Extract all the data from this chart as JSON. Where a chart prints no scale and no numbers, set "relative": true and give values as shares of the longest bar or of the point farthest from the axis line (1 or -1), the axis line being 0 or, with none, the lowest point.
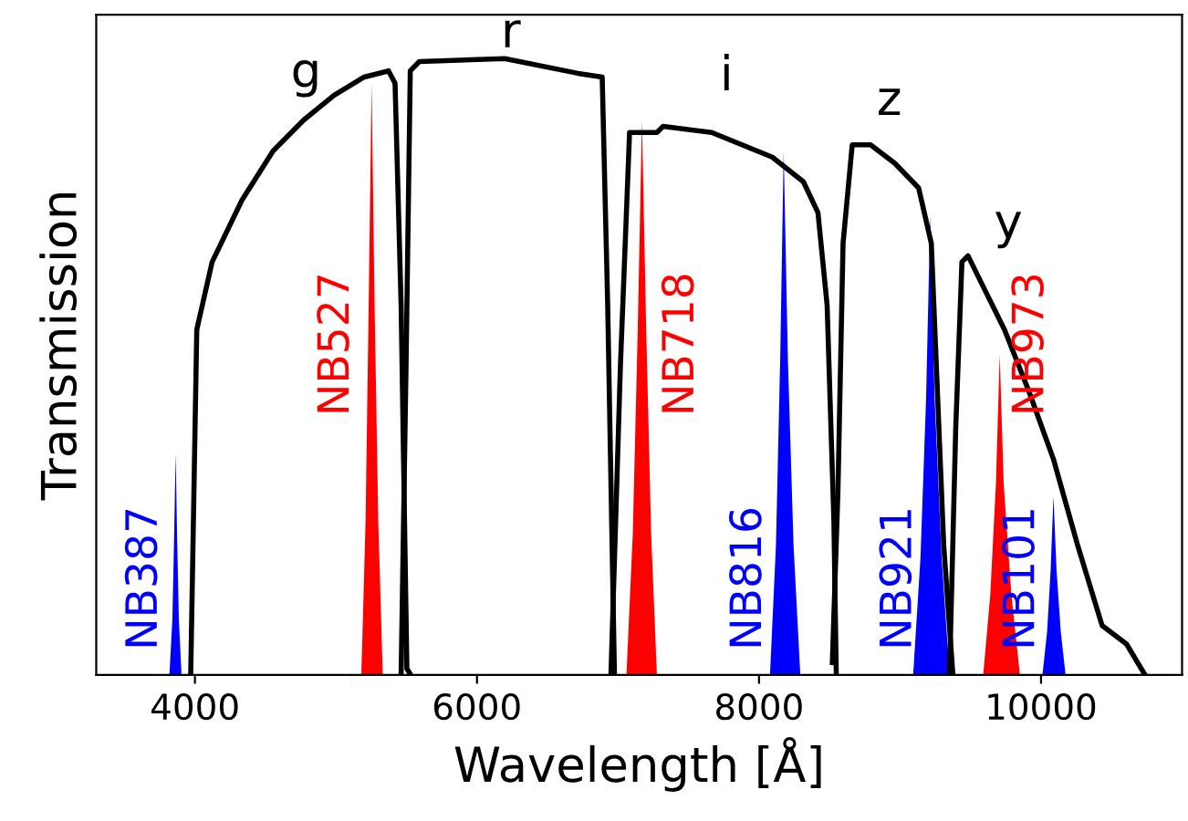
{
  "chart_data": {
    "type": "line",
    "relative": true,
    "xlabel": "Wavelength [Å]",
    "ylabel": "Transmission",
    "xlim": [
      3300,
      11000
    ],
    "xticks": [
      4000,
      6000,
      8000,
      10000
    ],
    "grid": false,
    "legend": false,
    "marker": "none",
    "line_style": "solid",
    "series": [
      {
        "name": "g",
        "color": "#000000",
        "x": [
          3970,
          4013,
          4122,
          4333,
          4554,
          4770,
          4985,
          5200,
          5373,
          5419,
          5462,
          5503,
          5530
        ],
        "values": [
          0,
          0.56,
          0.67,
          0.77,
          0.85,
          0.9,
          0.94,
          0.97,
          0.98,
          0.96,
          0.6,
          0.01,
          0
        ]
      },
      {
        "name": "r",
        "color": "#000000",
        "x": [
          5462,
          5497,
          5527,
          5591,
          6197,
          6716,
          6888,
          6927,
          6975
        ],
        "values": [
          0,
          0.5,
          0.98,
          0.995,
          1.0,
          0.976,
          0.97,
          0.6,
          0
        ]
      },
      {
        "name": "i",
        "color": "#000000",
        "x": [
          6950,
          7017,
          7082,
          7276,
          7320,
          7665,
          8094,
          8315,
          8418,
          8483,
          8531,
          8548
        ],
        "values": [
          0,
          0.5,
          0.88,
          0.88,
          0.89,
          0.88,
          0.84,
          0.8,
          0.75,
          0.6,
          0.25,
          0
        ]
      },
      {
        "name": "z",
        "color": "#000000",
        "x": [
          8520,
          8560,
          8596,
          8661,
          8791,
          8963,
          9132,
          9222,
          9310,
          9375
        ],
        "values": [
          0.02,
          0.3,
          0.7,
          0.86,
          0.86,
          0.83,
          0.79,
          0.7,
          0.21,
          0
        ]
      },
      {
        "name": "y",
        "color": "#000000",
        "x": [
          9351,
          9395,
          9439,
          9482,
          9568,
          9741,
          9914,
          10088,
          10260,
          10433,
          10606,
          10737
        ],
        "values": [
          0,
          0.4,
          0.67,
          0.68,
          0.64,
          0.56,
          0.46,
          0.35,
          0.21,
          0.08,
          0.05,
          0
        ]
      },
      {
        "name": "NB387",
        "type": "area",
        "color": "#0000ff",
        "x": [
          3819,
          3840,
          3852,
          3863,
          3874,
          3886,
          3905
        ],
        "values": [
          0,
          0.09,
          0.22,
          0.36,
          0.22,
          0.09,
          0
        ]
      },
      {
        "name": "NB527",
        "type": "area",
        "color": "#ff0000",
        "x": [
          5180,
          5210,
          5232,
          5253,
          5274,
          5300,
          5332
        ],
        "values": [
          0,
          0.25,
          0.6,
          0.96,
          0.6,
          0.25,
          0
        ]
      },
      {
        "name": "NB718",
        "type": "area",
        "color": "#ff0000",
        "x": [
          7060,
          7105,
          7140,
          7170,
          7200,
          7235,
          7276
        ],
        "values": [
          0,
          0.23,
          0.56,
          0.9,
          0.56,
          0.23,
          0
        ]
      },
      {
        "name": "NB816",
        "type": "area",
        "color": "#0000ff",
        "x": [
          8078,
          8120,
          8150,
          8175,
          8205,
          8245,
          8293
        ],
        "values": [
          0,
          0.21,
          0.51,
          0.85,
          0.51,
          0.21,
          0
        ]
      },
      {
        "name": "NB921",
        "type": "area",
        "color": "#0000ff",
        "x": [
          9093,
          9145,
          9185,
          9214,
          9245,
          9295,
          9352
        ],
        "values": [
          0,
          0.19,
          0.45,
          0.745,
          0.45,
          0.19,
          0
        ]
      },
      {
        "name": "NB973",
        "type": "area",
        "color": "#ff0000",
        "x": [
          9590,
          9640,
          9680,
          9707,
          9735,
          9790,
          9850
        ],
        "values": [
          0,
          0.13,
          0.31,
          0.52,
          0.31,
          0.13,
          0
        ]
      },
      {
        "name": "NB101",
        "type": "area",
        "color": "#0000ff",
        "x": [
          10010,
          10043,
          10068,
          10088,
          10110,
          10140,
          10174
        ],
        "values": [
          0,
          0.07,
          0.17,
          0.29,
          0.17,
          0.07,
          0
        ]
      }
    ]
  }
}
